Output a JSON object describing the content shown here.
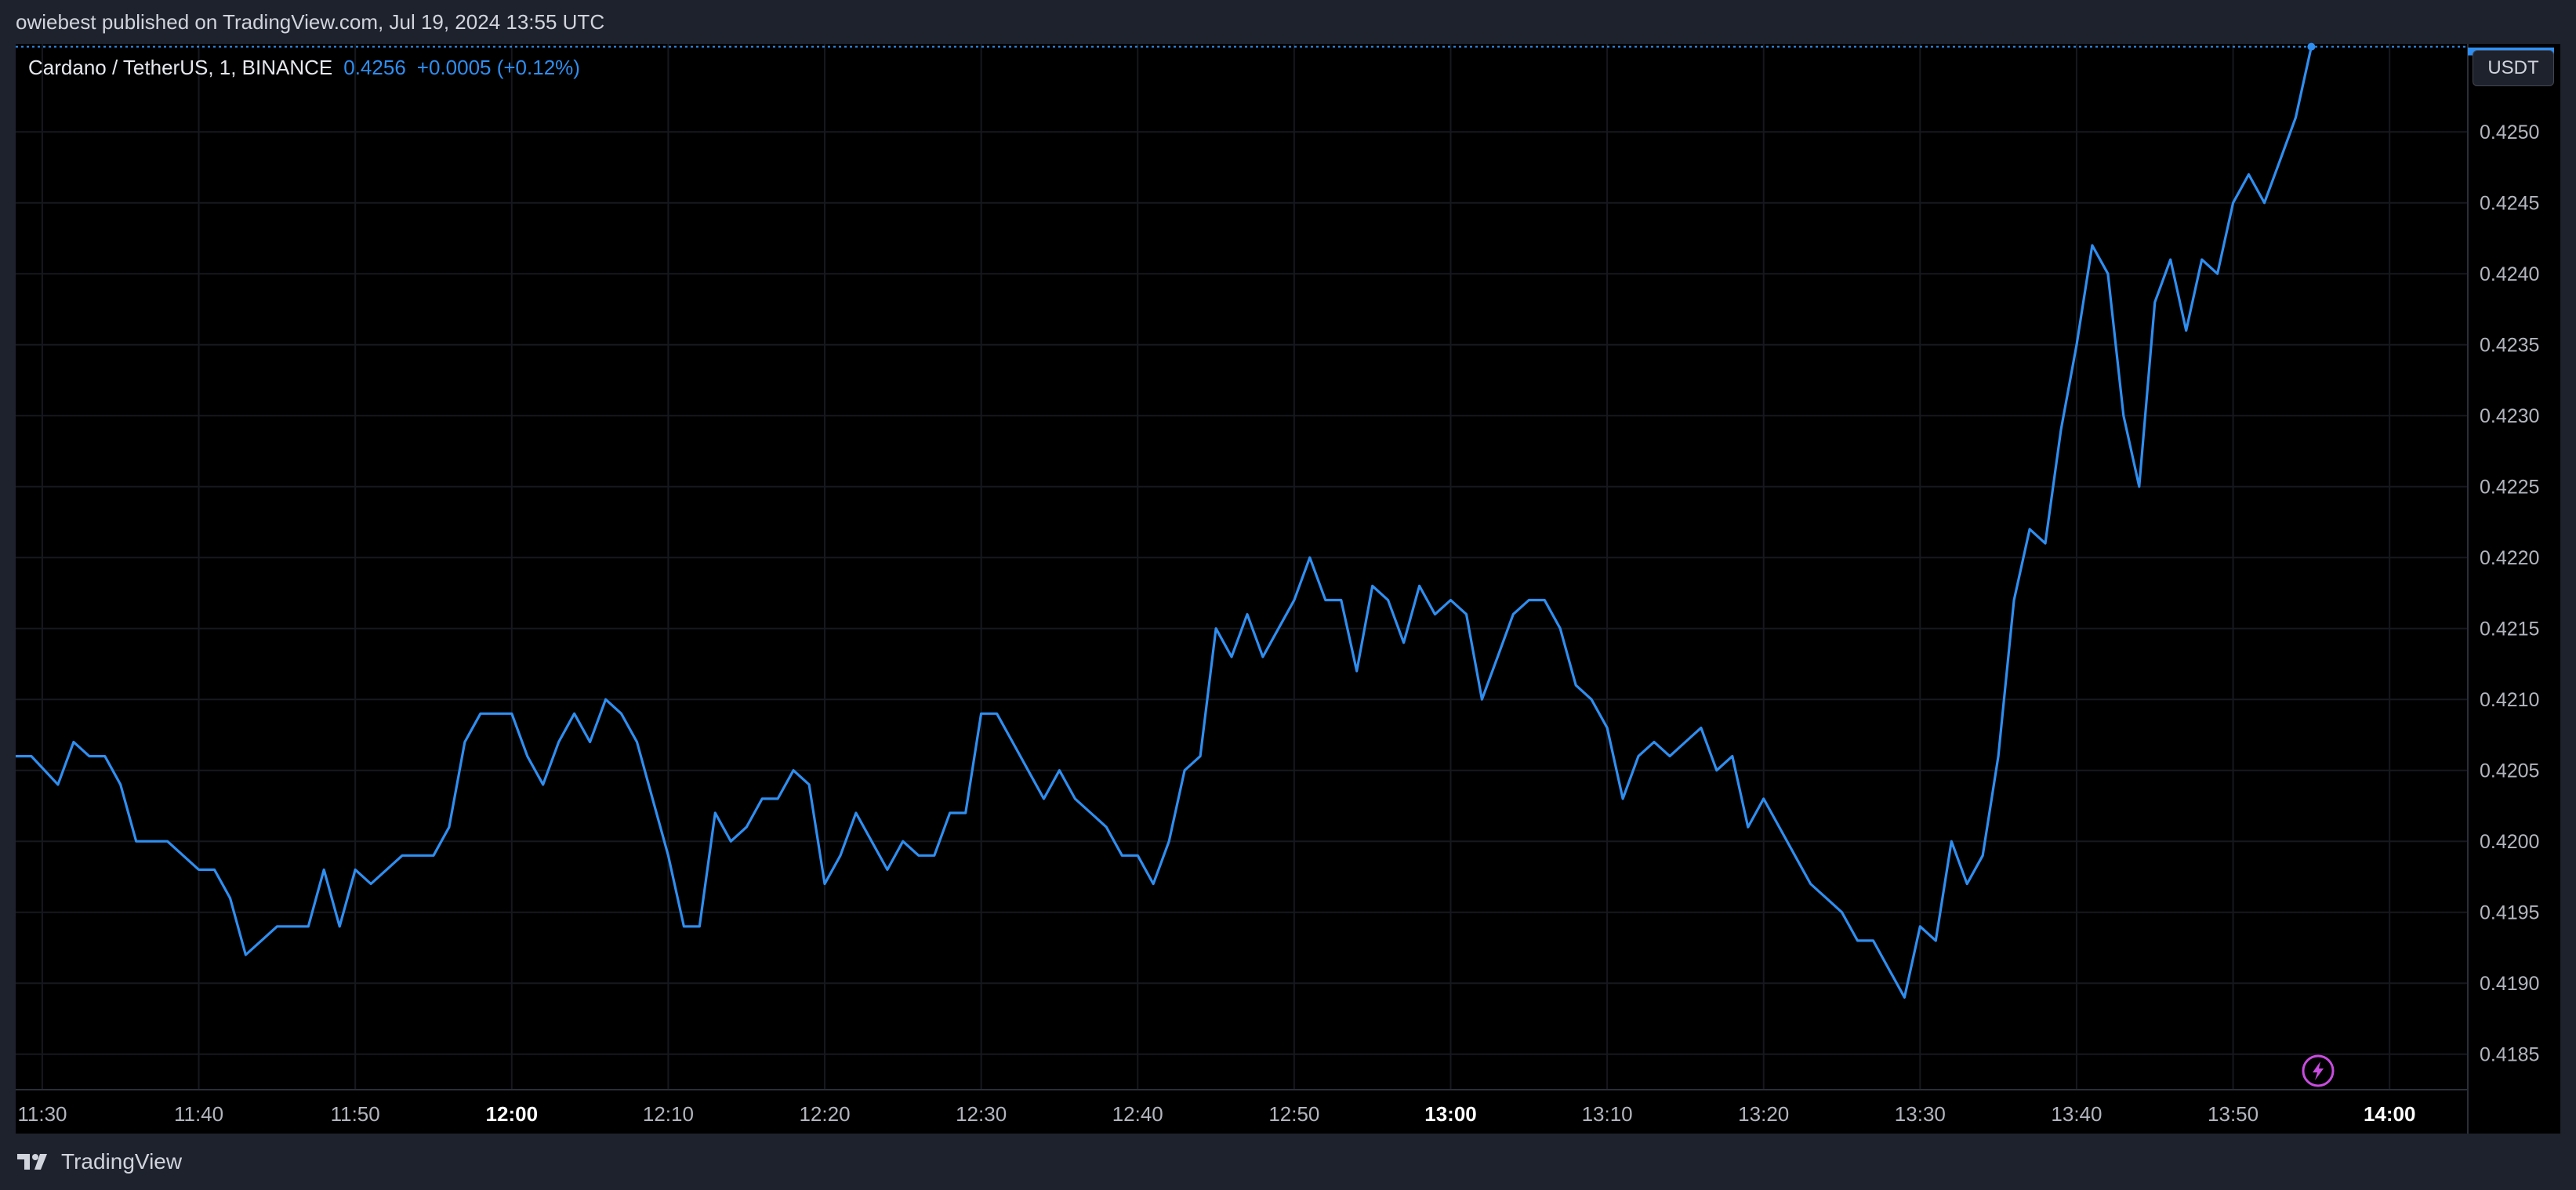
{
  "header": {
    "published_text": "owiebest published on TradingView.com, Jul 19, 2024 13:55 UTC"
  },
  "legend": {
    "symbol": "Cardano / TetherUS, 1, BINANCE",
    "price": "0.4256",
    "change": "+0.0005 (+0.12%)"
  },
  "currency_button": "USDT",
  "footer": {
    "brand": "TradingView",
    "logo_icon": "tradingview-logo-icon"
  },
  "colors": {
    "line": "#2f8ef0",
    "background": "#000000",
    "grid": "#1c1f26",
    "axis_text": "#b2b5be",
    "flash_icon": "#c94ce0"
  },
  "chart_data": {
    "type": "line",
    "title": "Cardano / TetherUS, 1, BINANCE",
    "xlabel": "",
    "ylabel": "",
    "x_ticks": [
      {
        "label": "11:30",
        "minute": 0,
        "bold": false
      },
      {
        "label": "11:40",
        "minute": 10,
        "bold": false
      },
      {
        "label": "11:50",
        "minute": 20,
        "bold": false
      },
      {
        "label": "12:00",
        "minute": 30,
        "bold": true
      },
      {
        "label": "12:10",
        "minute": 40,
        "bold": false
      },
      {
        "label": "12:20",
        "minute": 50,
        "bold": false
      },
      {
        "label": "12:30",
        "minute": 60,
        "bold": false
      },
      {
        "label": "12:40",
        "minute": 70,
        "bold": false
      },
      {
        "label": "12:50",
        "minute": 80,
        "bold": false
      },
      {
        "label": "13:00",
        "minute": 90,
        "bold": true
      },
      {
        "label": "13:10",
        "minute": 100,
        "bold": false
      },
      {
        "label": "13:20",
        "minute": 110,
        "bold": false
      },
      {
        "label": "13:30",
        "minute": 120,
        "bold": false
      },
      {
        "label": "13:40",
        "minute": 130,
        "bold": false
      },
      {
        "label": "13:50",
        "minute": 140,
        "bold": false
      },
      {
        "label": "14:00",
        "minute": 150,
        "bold": true
      }
    ],
    "y_ticks": [
      "0.4250",
      "0.4245",
      "0.4240",
      "0.4235",
      "0.4230",
      "0.4225",
      "0.4220",
      "0.4215",
      "0.4210",
      "0.4205",
      "0.4200",
      "0.4195",
      "0.4190",
      "0.4185"
    ],
    "ylim": [
      0.41825,
      0.42562
    ],
    "xlim": [
      -1.7,
      155
    ],
    "grid": true,
    "last_price": 0.4256,
    "series": [
      {
        "values": [
          [
            -1.7,
            0.4206
          ],
          [
            -0.7,
            0.4206
          ],
          [
            1,
            0.4204
          ],
          [
            2,
            0.4207
          ],
          [
            3,
            0.4206
          ],
          [
            4,
            0.4206
          ],
          [
            5,
            0.4204
          ],
          [
            6,
            0.42
          ],
          [
            7,
            0.42
          ],
          [
            8,
            0.42
          ],
          [
            9,
            0.4199
          ],
          [
            10,
            0.4198
          ],
          [
            11,
            0.4198
          ],
          [
            12,
            0.4196
          ],
          [
            13,
            0.4192
          ],
          [
            14,
            0.4193
          ],
          [
            15,
            0.4194
          ],
          [
            16,
            0.4194
          ],
          [
            17,
            0.4194
          ],
          [
            18,
            0.4198
          ],
          [
            19,
            0.4194
          ],
          [
            20,
            0.4198
          ],
          [
            21,
            0.4197
          ],
          [
            22,
            0.4198
          ],
          [
            23,
            0.4199
          ],
          [
            24,
            0.4199
          ],
          [
            25,
            0.4199
          ],
          [
            26,
            0.4201
          ],
          [
            27,
            0.4207
          ],
          [
            28,
            0.4209
          ],
          [
            29,
            0.4209
          ],
          [
            30,
            0.4209
          ],
          [
            31,
            0.4206
          ],
          [
            32,
            0.4204
          ],
          [
            33,
            0.4207
          ],
          [
            34,
            0.4209
          ],
          [
            35,
            0.4207
          ],
          [
            36,
            0.421
          ],
          [
            37,
            0.4209
          ],
          [
            38,
            0.4207
          ],
          [
            39,
            0.4203
          ],
          [
            40,
            0.4199
          ],
          [
            41,
            0.4194
          ],
          [
            42,
            0.4194
          ],
          [
            43,
            0.4202
          ],
          [
            44,
            0.42
          ],
          [
            45,
            0.4201
          ],
          [
            46,
            0.4203
          ],
          [
            47,
            0.4203
          ],
          [
            48,
            0.4205
          ],
          [
            49,
            0.4204
          ],
          [
            50,
            0.4197
          ],
          [
            51,
            0.4199
          ],
          [
            52,
            0.4202
          ],
          [
            53,
            0.42
          ],
          [
            54,
            0.4198
          ],
          [
            55,
            0.42
          ],
          [
            56,
            0.4199
          ],
          [
            57,
            0.4199
          ],
          [
            58,
            0.4202
          ],
          [
            59,
            0.4202
          ],
          [
            60,
            0.4209
          ],
          [
            61,
            0.4209
          ],
          [
            62,
            0.4207
          ],
          [
            63,
            0.4205
          ],
          [
            64,
            0.4203
          ],
          [
            65,
            0.4205
          ],
          [
            66,
            0.4203
          ],
          [
            67,
            0.4202
          ],
          [
            68,
            0.4201
          ],
          [
            69,
            0.4199
          ],
          [
            70,
            0.4199
          ],
          [
            71,
            0.4197
          ],
          [
            72,
            0.42
          ],
          [
            73,
            0.4205
          ],
          [
            74,
            0.4206
          ],
          [
            75,
            0.4215
          ],
          [
            76,
            0.4213
          ],
          [
            77,
            0.4216
          ],
          [
            78,
            0.4213
          ],
          [
            79,
            0.4215
          ],
          [
            80,
            0.4217
          ],
          [
            81,
            0.422
          ],
          [
            82,
            0.4217
          ],
          [
            83,
            0.4217
          ],
          [
            84,
            0.4212
          ],
          [
            85,
            0.4218
          ],
          [
            86,
            0.4217
          ],
          [
            87,
            0.4214
          ],
          [
            88,
            0.4218
          ],
          [
            89,
            0.4216
          ],
          [
            90,
            0.4217
          ],
          [
            91,
            0.4216
          ],
          [
            92,
            0.421
          ],
          [
            93,
            0.4213
          ],
          [
            94,
            0.4216
          ],
          [
            95,
            0.4217
          ],
          [
            96,
            0.4217
          ],
          [
            97,
            0.4215
          ],
          [
            98,
            0.4211
          ],
          [
            99,
            0.421
          ],
          [
            100,
            0.4208
          ],
          [
            101,
            0.4203
          ],
          [
            102,
            0.4206
          ],
          [
            103,
            0.4207
          ],
          [
            104,
            0.4206
          ],
          [
            105,
            0.4207
          ],
          [
            106,
            0.4208
          ],
          [
            107,
            0.4205
          ],
          [
            108,
            0.4206
          ],
          [
            109,
            0.4201
          ],
          [
            110,
            0.4203
          ],
          [
            111,
            0.4201
          ],
          [
            112,
            0.4199
          ],
          [
            113,
            0.4197
          ],
          [
            114,
            0.4196
          ],
          [
            115,
            0.4195
          ],
          [
            116,
            0.4193
          ],
          [
            117,
            0.4193
          ],
          [
            118,
            0.4191
          ],
          [
            119,
            0.4189
          ],
          [
            120,
            0.4194
          ],
          [
            121,
            0.4193
          ],
          [
            122,
            0.42
          ],
          [
            123,
            0.4197
          ],
          [
            124,
            0.4199
          ],
          [
            125,
            0.4206
          ],
          [
            126,
            0.4217
          ],
          [
            127,
            0.4222
          ],
          [
            128,
            0.4221
          ],
          [
            129,
            0.4229
          ],
          [
            130,
            0.4235
          ],
          [
            131,
            0.4242
          ],
          [
            132,
            0.424
          ],
          [
            133,
            0.423
          ],
          [
            134,
            0.4225
          ],
          [
            135,
            0.4238
          ],
          [
            136,
            0.4241
          ],
          [
            137,
            0.4236
          ],
          [
            138,
            0.4241
          ],
          [
            139,
            0.424
          ],
          [
            140,
            0.4245
          ],
          [
            141,
            0.4247
          ],
          [
            142,
            0.4245
          ],
          [
            143,
            0.4248
          ],
          [
            144,
            0.4251
          ],
          [
            145,
            0.4256
          ]
        ]
      }
    ]
  }
}
